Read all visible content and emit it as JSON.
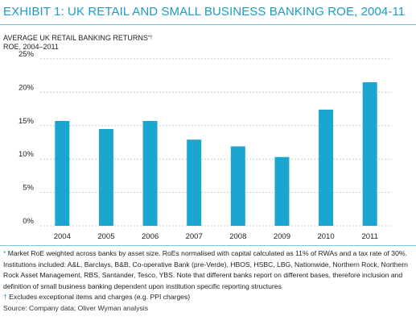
{
  "exhibit": {
    "title": "EXHIBIT 1: UK RETAIL AND SMALL BUSINESS BANKING ROE, 2004-11"
  },
  "chart_data": {
    "type": "bar",
    "title": "AVERAGE UK RETAIL BANKING RETURNS",
    "title_marks": "*†",
    "subtitle": "ROE, 2004–2011",
    "categories": [
      "2004",
      "2005",
      "2006",
      "2007",
      "2008",
      "2009",
      "2010",
      "2011"
    ],
    "values": [
      15.7,
      14.5,
      15.7,
      12.9,
      11.9,
      10.3,
      17.4,
      21.5
    ],
    "ylim": [
      0,
      25
    ],
    "yticks": [
      0,
      5,
      10,
      15,
      20,
      25
    ],
    "ytick_labels": [
      "0%",
      "5%",
      "10%",
      "15%",
      "20%",
      "25%"
    ],
    "grid": true,
    "bar_color": "#1ba6cf",
    "grid_color": "#c9c9c9"
  },
  "notes": {
    "footnote_star_symbol": "*",
    "footnote_star": "Market RoE weighted across banks by asset size. RoEs normalised with capital calculated as 11% of RWAs and a tax rate of 30%. Institutions included: A&L, Barclays, B&B, Co-operative Bank (pre-Verde), HBOS, HSBC, LBG, Nationwide, Northern Rock, Northern Rock Asset Management, RBS, Santander, Tesco, YBS. Note that different banks report on different bases, therefore inclusion and definition of small business banking dependent upon institution specific reporting structures",
    "footnote_dagger_symbol": "†",
    "footnote_dagger": "Excludes exceptional items and charges (e.g. PPI charges)",
    "source_label": "Source:",
    "source_text": "Company data; Oliver Wyman analysis"
  },
  "colors": {
    "accent": "#1a9cc5"
  }
}
